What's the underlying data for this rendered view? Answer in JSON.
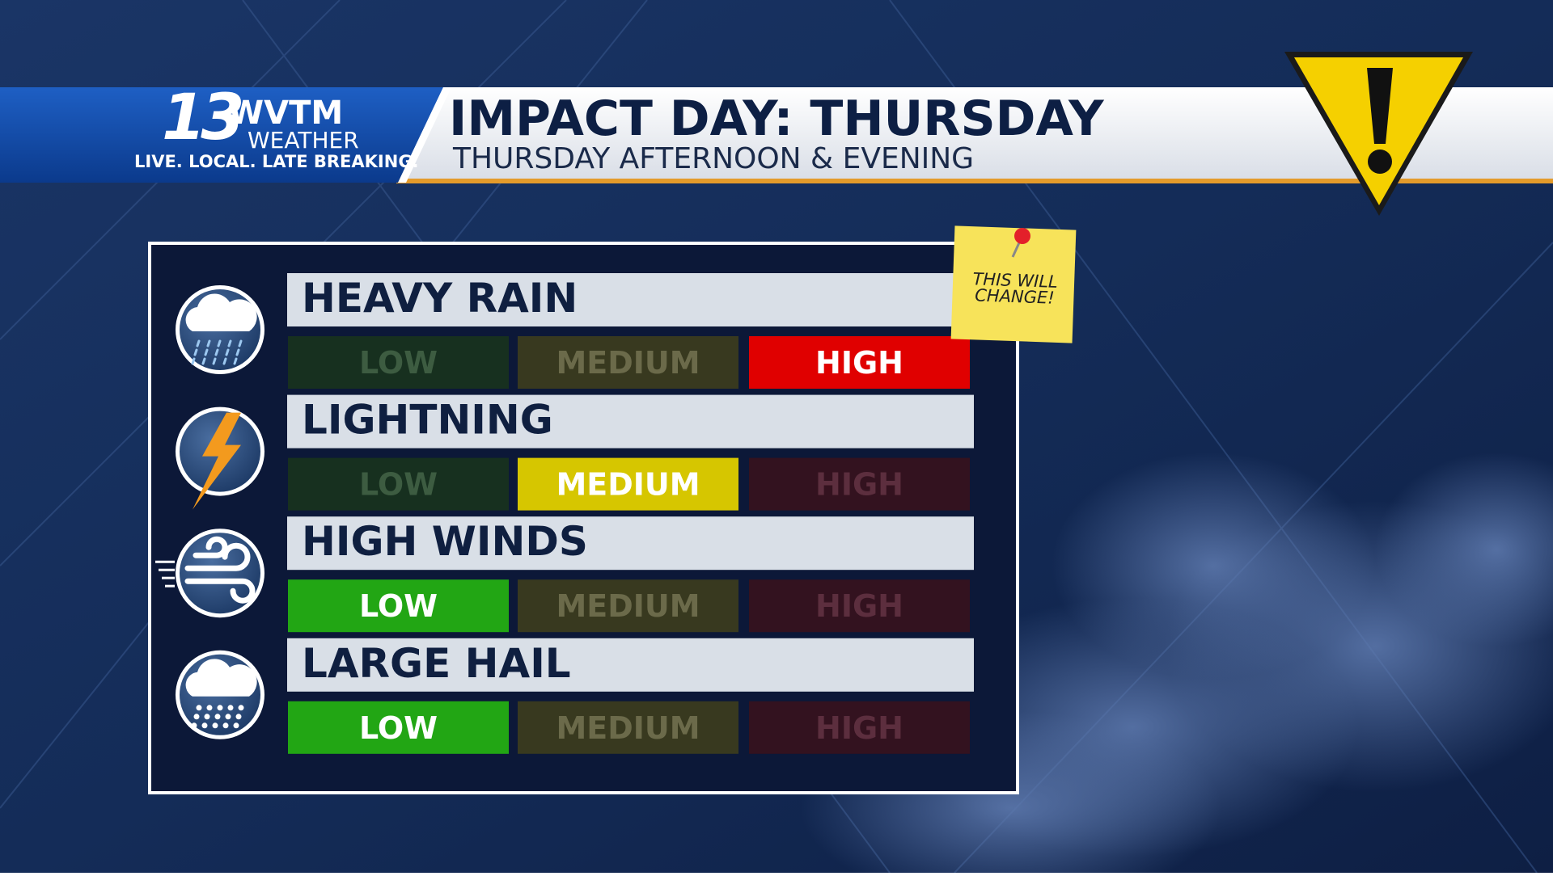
{
  "header": {
    "logo": {
      "number": "13",
      "call_sign": "WVTM",
      "brand": "WEATHER",
      "tagline": "LIVE. LOCAL. LATE BREAKING."
    },
    "title": "IMPACT DAY: THURSDAY",
    "subtitle": "THURSDAY AFTERNOON & EVENING"
  },
  "note": {
    "lines": [
      "THIS WILL",
      "CHANGE!"
    ]
  },
  "hazards": [
    {
      "name": "HEAVY RAIN",
      "icon": "rain",
      "levels": [
        "LOW",
        "MEDIUM",
        "HIGH"
      ],
      "active": 2
    },
    {
      "name": "LIGHTNING",
      "icon": "lightning",
      "levels": [
        "LOW",
        "MEDIUM",
        "HIGH"
      ],
      "active": 1
    },
    {
      "name": "HIGH WINDS",
      "icon": "wind",
      "levels": [
        "LOW",
        "MEDIUM",
        "HIGH"
      ],
      "active": 0
    },
    {
      "name": "LARGE HAIL",
      "icon": "hail",
      "levels": [
        "LOW",
        "MEDIUM",
        "HIGH"
      ],
      "active": 0
    }
  ]
}
